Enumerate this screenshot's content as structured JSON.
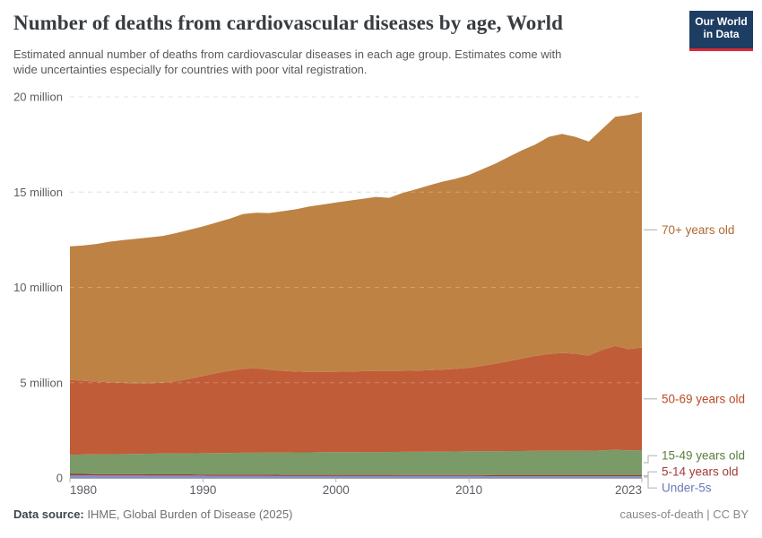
{
  "header": {
    "title": "Number of deaths from cardiovascular diseases by age, World",
    "subtitle_lines": [
      "Estimated annual number of deaths from cardiovascular diseases in each age group. Estimates come with",
      "wide uncertainties especially for countries with poor vital registration."
    ],
    "logo": {
      "line1": "Our World",
      "line2": "in Data",
      "bg_color": "#1d3d63",
      "bar_color": "#dc2a35"
    }
  },
  "footer": {
    "source_label": "Data source:",
    "source_value": " IHME, Global Burden of Disease (2025)",
    "right_text": "causes-of-death | CC BY"
  },
  "chart_data": {
    "type": "area",
    "stacked": true,
    "title": "Number of deaths from cardiovascular diseases by age, World",
    "xlabel": "",
    "ylabel": "",
    "ylim": [
      0,
      20
    ],
    "grid": "dashed-horizontal",
    "legend_position": "right-of-plot",
    "years": [
      1980,
      1981,
      1982,
      1983,
      1984,
      1985,
      1986,
      1987,
      1988,
      1989,
      1990,
      1991,
      1992,
      1993,
      1994,
      1995,
      1996,
      1997,
      1998,
      1999,
      2000,
      2001,
      2002,
      2003,
      2004,
      2005,
      2006,
      2007,
      2008,
      2009,
      2010,
      2011,
      2012,
      2013,
      2014,
      2015,
      2016,
      2017,
      2018,
      2019,
      2020,
      2021,
      2022,
      2023
    ],
    "unit": "million deaths",
    "series": [
      {
        "name": "Under-5s",
        "color": "#8590c8",
        "label_color": "#6a7ab9",
        "values": [
          0.14,
          0.14,
          0.13,
          0.13,
          0.13,
          0.13,
          0.12,
          0.12,
          0.12,
          0.12,
          0.12,
          0.11,
          0.11,
          0.11,
          0.11,
          0.11,
          0.1,
          0.1,
          0.1,
          0.1,
          0.1,
          0.1,
          0.1,
          0.1,
          0.1,
          0.1,
          0.1,
          0.1,
          0.1,
          0.1,
          0.1,
          0.1,
          0.09,
          0.09,
          0.09,
          0.09,
          0.09,
          0.09,
          0.09,
          0.09,
          0.09,
          0.09,
          0.09,
          0.09
        ]
      },
      {
        "name": "5-14 years old",
        "color": "#9a3b33",
        "label_color": "#a03d3a",
        "values": [
          0.07,
          0.07,
          0.07,
          0.07,
          0.07,
          0.07,
          0.07,
          0.07,
          0.07,
          0.07,
          0.06,
          0.06,
          0.06,
          0.06,
          0.06,
          0.06,
          0.06,
          0.06,
          0.06,
          0.06,
          0.06,
          0.06,
          0.06,
          0.06,
          0.06,
          0.05,
          0.05,
          0.05,
          0.05,
          0.05,
          0.05,
          0.05,
          0.05,
          0.05,
          0.05,
          0.05,
          0.05,
          0.05,
          0.05,
          0.05,
          0.05,
          0.05,
          0.05,
          0.05
        ]
      },
      {
        "name": "15-49 years old",
        "color": "#7a9a67",
        "label_color": "#5a803e",
        "values": [
          1.01,
          1.02,
          1.04,
          1.04,
          1.05,
          1.06,
          1.08,
          1.09,
          1.1,
          1.1,
          1.12,
          1.14,
          1.14,
          1.15,
          1.15,
          1.16,
          1.17,
          1.18,
          1.18,
          1.19,
          1.19,
          1.19,
          1.2,
          1.2,
          1.2,
          1.22,
          1.22,
          1.23,
          1.23,
          1.24,
          1.25,
          1.25,
          1.26,
          1.27,
          1.27,
          1.28,
          1.28,
          1.28,
          1.28,
          1.28,
          1.31,
          1.34,
          1.31,
          1.32
        ]
      },
      {
        "name": "50-69 years old",
        "color": "#c15c38",
        "label_color": "#bc4a25",
        "values": [
          3.93,
          3.87,
          3.82,
          3.78,
          3.74,
          3.71,
          3.7,
          3.72,
          3.79,
          3.91,
          4.05,
          4.19,
          4.31,
          4.4,
          4.43,
          4.35,
          4.29,
          4.24,
          4.22,
          4.21,
          4.22,
          4.23,
          4.24,
          4.26,
          4.26,
          4.25,
          4.26,
          4.27,
          4.3,
          4.33,
          4.38,
          4.48,
          4.6,
          4.72,
          4.86,
          4.98,
          5.08,
          5.14,
          5.1,
          5.0,
          5.27,
          5.44,
          5.31,
          5.38
        ]
      },
      {
        "name": "70+ years old",
        "color": "#be8245",
        "label_color": "#ad6b32",
        "values": [
          7.0,
          7.1,
          7.22,
          7.38,
          7.49,
          7.58,
          7.65,
          7.7,
          7.77,
          7.82,
          7.85,
          7.9,
          7.98,
          8.13,
          8.17,
          8.22,
          8.38,
          8.52,
          8.69,
          8.79,
          8.88,
          8.97,
          9.05,
          9.13,
          9.08,
          9.33,
          9.52,
          9.7,
          9.87,
          9.98,
          10.12,
          10.32,
          10.5,
          10.72,
          10.93,
          11.1,
          11.4,
          11.49,
          11.38,
          11.23,
          11.58,
          12.03,
          12.29,
          12.36
        ]
      }
    ],
    "yticks": [
      {
        "value": 0,
        "label": "0"
      },
      {
        "value": 5,
        "label": "5 million"
      },
      {
        "value": 10,
        "label": "10 million"
      },
      {
        "value": 15,
        "label": "15 million"
      },
      {
        "value": 20,
        "label": "20 million"
      }
    ],
    "xticks": [
      {
        "year": 1980,
        "label": "1980",
        "align": "start"
      },
      {
        "year": 1990,
        "label": "1990",
        "align": "middle"
      },
      {
        "year": 2000,
        "label": "2000",
        "align": "middle"
      },
      {
        "year": 2010,
        "label": "2010",
        "align": "middle"
      },
      {
        "year": 2023,
        "label": "2023",
        "align": "end"
      }
    ],
    "colors": {
      "gridline": "#dadada",
      "axis_line": "#a1a4a8",
      "tick_mark": "#b0b3b6",
      "axis_text": "#5b5e63",
      "legend_connector": "#b8babd"
    }
  }
}
